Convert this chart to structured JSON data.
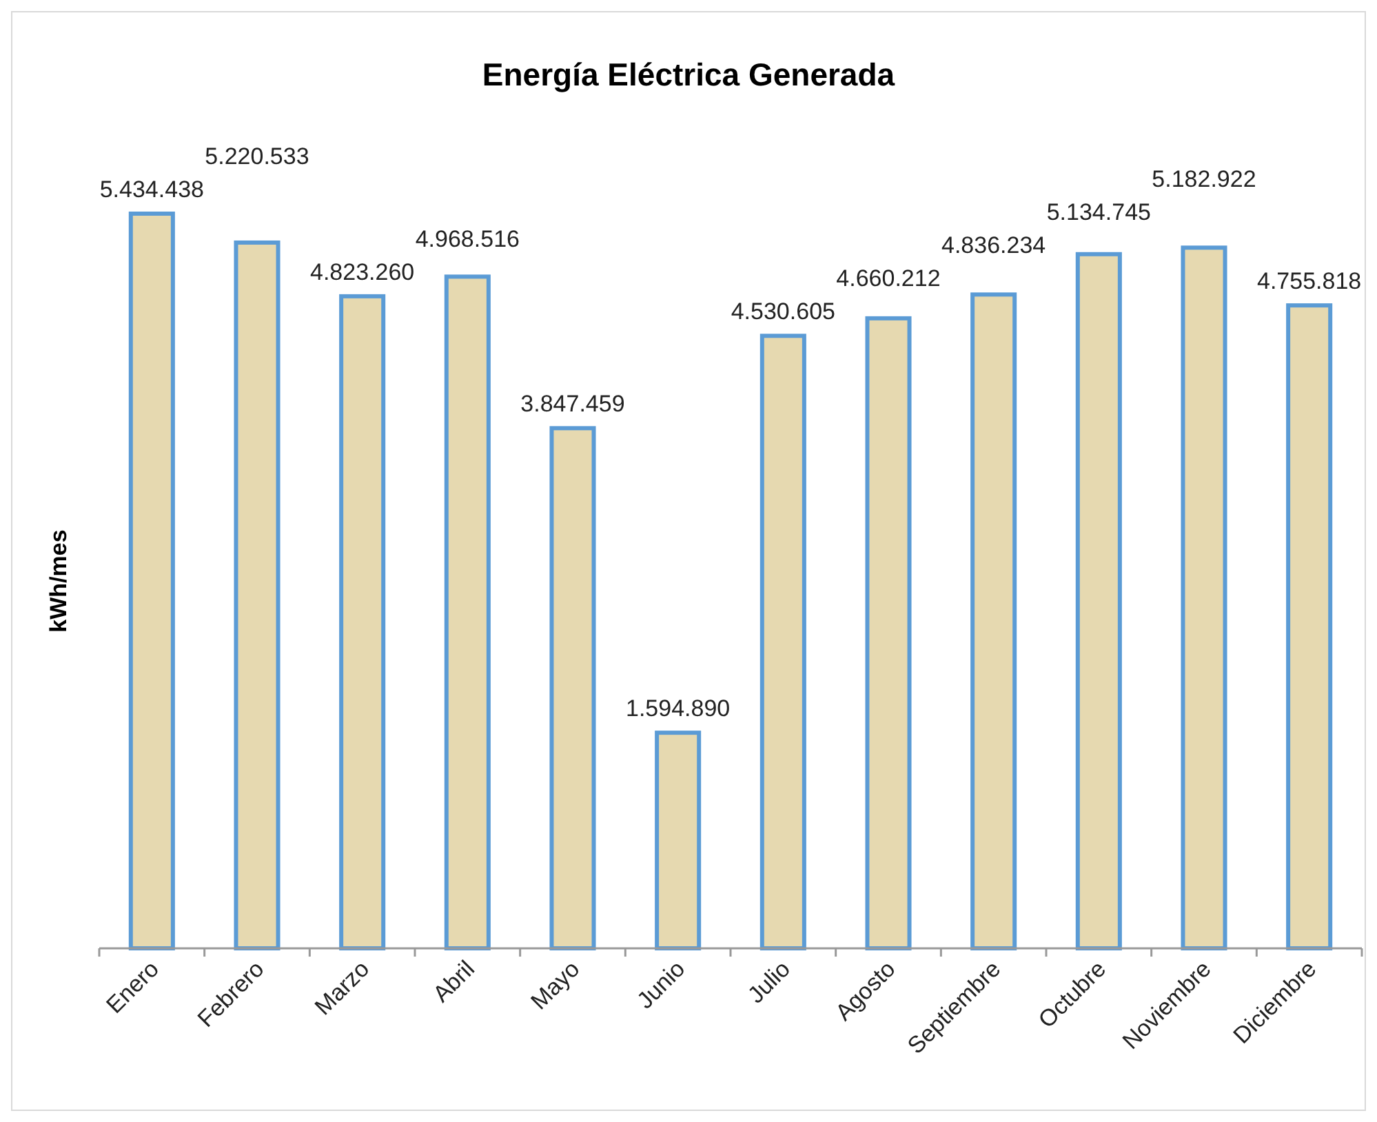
{
  "chart_data": {
    "type": "bar",
    "title": "Energía Eléctrica Generada",
    "ylabel": "kWh/mes",
    "categories": [
      "Enero",
      "Febrero",
      "Marzo",
      "Abril",
      "Mayo",
      "Junio",
      "Julio",
      "Agosto",
      "Septiembre",
      "Octubre",
      "Noviembre",
      "Diciembre"
    ],
    "values": [
      5434438,
      5220533,
      4823260,
      4968516,
      3847459,
      1594890,
      4530605,
      4660212,
      4836234,
      5134745,
      5182922,
      4755818
    ],
    "value_labels": [
      "5.434.438",
      "5.220.533",
      "4.823.260",
      "4.968.516",
      "3.847.459",
      "1.594.890",
      "4.530.605",
      "4.660.212",
      "4.836.234",
      "5.134.745",
      "5.182.922",
      "4.755.818"
    ],
    "color": "#e6d9b0"
  }
}
